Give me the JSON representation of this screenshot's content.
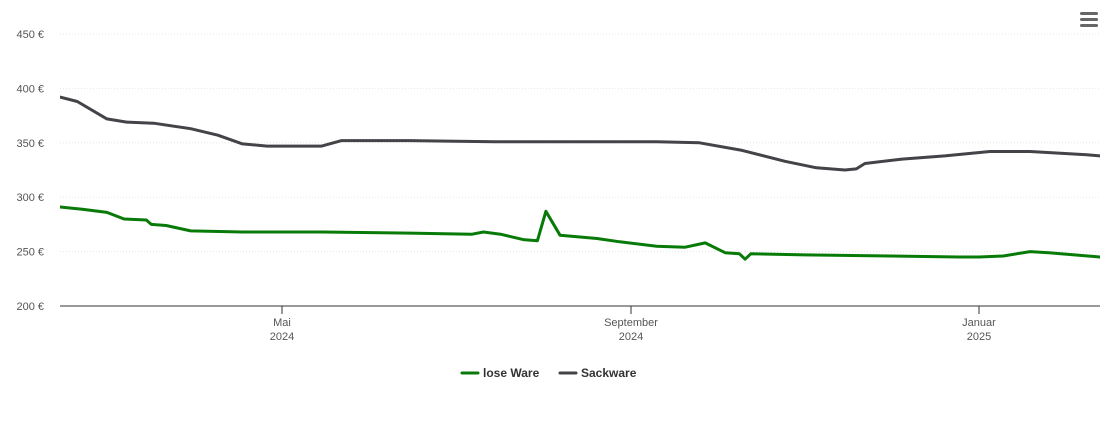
{
  "menu": {
    "icon": "hamburger-menu-icon"
  },
  "chart_data": {
    "type": "line",
    "title": "",
    "xlabel": "",
    "ylabel": "",
    "ylim": [
      200,
      450
    ],
    "yticks": [
      {
        "value": 200,
        "label": "200 €"
      },
      {
        "value": 250,
        "label": "250 €"
      },
      {
        "value": 300,
        "label": "300 €"
      },
      {
        "value": 350,
        "label": "350 €"
      },
      {
        "value": 400,
        "label": "400 €"
      },
      {
        "value": 450,
        "label": "450 €"
      }
    ],
    "xlim": [
      "2024-02-01",
      "2025-02-15"
    ],
    "xticks": [
      {
        "date": "2024-05-01",
        "month": "Mai",
        "year": "2024"
      },
      {
        "date": "2024-09-01",
        "month": "September",
        "year": "2024"
      },
      {
        "date": "2025-01-01",
        "month": "Januar",
        "year": "2025"
      }
    ],
    "grid": true,
    "legend": "bottom-center",
    "series": [
      {
        "name": "lose Ware",
        "color": "#087a08",
        "points": [
          [
            "2024-02-01",
            291
          ],
          [
            "2024-02-10",
            289
          ],
          [
            "2024-02-20",
            286
          ],
          [
            "2024-02-27",
            280
          ],
          [
            "2024-03-07",
            279
          ],
          [
            "2024-03-09",
            275
          ],
          [
            "2024-03-15",
            274
          ],
          [
            "2024-03-25",
            269
          ],
          [
            "2024-04-15",
            268
          ],
          [
            "2024-05-15",
            268
          ],
          [
            "2024-06-15",
            267
          ],
          [
            "2024-07-07",
            266
          ],
          [
            "2024-07-11",
            268
          ],
          [
            "2024-07-17",
            266
          ],
          [
            "2024-07-25",
            261
          ],
          [
            "2024-07-30",
            260
          ],
          [
            "2024-08-02",
            287
          ],
          [
            "2024-08-07",
            265
          ],
          [
            "2024-08-20",
            262
          ],
          [
            "2024-08-28",
            259
          ],
          [
            "2024-09-10",
            255
          ],
          [
            "2024-09-20",
            254
          ],
          [
            "2024-09-27",
            258
          ],
          [
            "2024-10-04",
            249
          ],
          [
            "2024-10-09",
            248
          ],
          [
            "2024-10-11",
            243
          ],
          [
            "2024-10-13",
            248
          ],
          [
            "2024-11-01",
            247
          ],
          [
            "2024-12-01",
            246
          ],
          [
            "2024-12-25",
            245
          ],
          [
            "2025-01-01",
            245
          ],
          [
            "2025-01-10",
            246
          ],
          [
            "2025-01-20",
            250
          ],
          [
            "2025-01-27",
            249
          ],
          [
            "2025-02-15",
            245
          ]
        ]
      },
      {
        "name": "Sackware",
        "color": "#434348",
        "points": [
          [
            "2024-02-01",
            392
          ],
          [
            "2024-02-08",
            388
          ],
          [
            "2024-02-20",
            372
          ],
          [
            "2024-02-28",
            369
          ],
          [
            "2024-03-10",
            368
          ],
          [
            "2024-03-25",
            363
          ],
          [
            "2024-04-05",
            357
          ],
          [
            "2024-04-15",
            349
          ],
          [
            "2024-04-25",
            347
          ],
          [
            "2024-05-15",
            347
          ],
          [
            "2024-05-22",
            352
          ],
          [
            "2024-06-15",
            352
          ],
          [
            "2024-07-15",
            351
          ],
          [
            "2024-08-15",
            351
          ],
          [
            "2024-09-10",
            351
          ],
          [
            "2024-09-25",
            350
          ],
          [
            "2024-10-10",
            343
          ],
          [
            "2024-10-25",
            333
          ],
          [
            "2024-11-05",
            327
          ],
          [
            "2024-11-15",
            325
          ],
          [
            "2024-11-19",
            326
          ],
          [
            "2024-11-22",
            331
          ],
          [
            "2024-12-05",
            335
          ],
          [
            "2024-12-20",
            338
          ],
          [
            "2025-01-05",
            342
          ],
          [
            "2025-01-20",
            342
          ],
          [
            "2025-02-10",
            339
          ],
          [
            "2025-02-15",
            338
          ]
        ]
      }
    ]
  }
}
